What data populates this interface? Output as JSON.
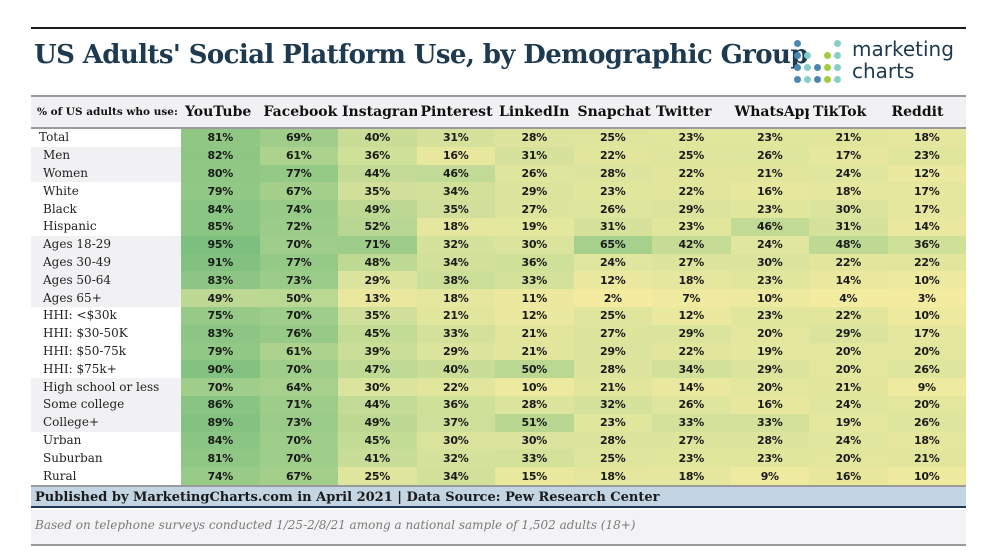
{
  "header": {
    "title": "US Adults' Social Platform Use, by Demographic Group",
    "logo_line1": "marketing",
    "logo_line2": "charts"
  },
  "colors": {
    "title": "#1d3a50",
    "low": "#f6eca0",
    "mid": "#d7e39c",
    "high": "#7cbf7e",
    "published_band": "#c3d5e3",
    "logo_blue": "#4a87b0",
    "logo_teal": "#86cfc8",
    "logo_green": "#a3cc3c"
  },
  "chart_data": {
    "type": "heatmap",
    "title": "US Adults' Social Platform Use, by Demographic Group",
    "row_header": "% of US adults who use:",
    "columns": [
      "YouTube",
      "Facebook",
      "Instagram",
      "Pinterest",
      "LinkedIn",
      "Snapchat",
      "Twitter",
      "WhatsApp",
      "TikTok",
      "Reddit"
    ],
    "unit": "%",
    "rows": [
      {
        "label": "Total",
        "values": [
          81,
          69,
          40,
          31,
          28,
          25,
          23,
          23,
          21,
          18
        ]
      },
      {
        "label": "Men",
        "values": [
          82,
          61,
          36,
          16,
          31,
          22,
          25,
          26,
          17,
          23
        ]
      },
      {
        "label": "Women",
        "values": [
          80,
          77,
          44,
          46,
          26,
          28,
          22,
          21,
          24,
          12
        ]
      },
      {
        "label": "White",
        "values": [
          79,
          67,
          35,
          34,
          29,
          23,
          22,
          16,
          18,
          17
        ]
      },
      {
        "label": "Black",
        "values": [
          84,
          74,
          49,
          35,
          27,
          26,
          29,
          23,
          30,
          17
        ]
      },
      {
        "label": "Hispanic",
        "values": [
          85,
          72,
          52,
          18,
          19,
          31,
          23,
          46,
          31,
          14
        ]
      },
      {
        "label": "Ages 18-29",
        "values": [
          95,
          70,
          71,
          32,
          30,
          65,
          42,
          24,
          48,
          36
        ]
      },
      {
        "label": "Ages 30-49",
        "values": [
          91,
          77,
          48,
          34,
          36,
          24,
          27,
          30,
          22,
          22
        ]
      },
      {
        "label": "Ages 50-64",
        "values": [
          83,
          73,
          29,
          38,
          33,
          12,
          18,
          23,
          14,
          10
        ]
      },
      {
        "label": "Ages 65+",
        "values": [
          49,
          50,
          13,
          18,
          11,
          2,
          7,
          10,
          4,
          3
        ]
      },
      {
        "label": "HHI: <$30k",
        "values": [
          75,
          70,
          35,
          21,
          12,
          25,
          12,
          23,
          22,
          10
        ]
      },
      {
        "label": "HHI: $30-50K",
        "values": [
          83,
          76,
          45,
          33,
          21,
          27,
          29,
          20,
          29,
          17
        ]
      },
      {
        "label": "HHI: $50-75k",
        "values": [
          79,
          61,
          39,
          29,
          21,
          29,
          22,
          19,
          20,
          20
        ]
      },
      {
        "label": "HHI: $75k+",
        "values": [
          90,
          70,
          47,
          40,
          50,
          28,
          34,
          29,
          20,
          26
        ]
      },
      {
        "label": "High school or less",
        "values": [
          70,
          64,
          30,
          22,
          10,
          21,
          14,
          20,
          21,
          9
        ]
      },
      {
        "label": "Some college",
        "values": [
          86,
          71,
          44,
          36,
          28,
          32,
          26,
          16,
          24,
          20
        ]
      },
      {
        "label": "College+",
        "values": [
          89,
          73,
          49,
          37,
          51,
          23,
          33,
          33,
          19,
          26
        ]
      },
      {
        "label": "Urban",
        "values": [
          84,
          70,
          45,
          30,
          30,
          28,
          27,
          28,
          24,
          18
        ]
      },
      {
        "label": "Suburban",
        "values": [
          81,
          70,
          41,
          32,
          33,
          25,
          23,
          23,
          20,
          21
        ]
      },
      {
        "label": "Rural",
        "values": [
          74,
          67,
          25,
          34,
          15,
          18,
          18,
          9,
          16,
          10
        ]
      }
    ],
    "shaded_groups": [
      "Men",
      "Women",
      "Ages 18-29",
      "Ages 30-49",
      "Ages 50-64",
      "Ages 65+",
      "High school or less",
      "Some college",
      "College+"
    ]
  },
  "footer": {
    "published": "Published by MarketingCharts.com in April 2021 | Data Source: Pew Research Center",
    "note": "Based on telephone surveys conducted 1/25-2/8/21 among a national sample of 1,502 adults (18+)"
  }
}
